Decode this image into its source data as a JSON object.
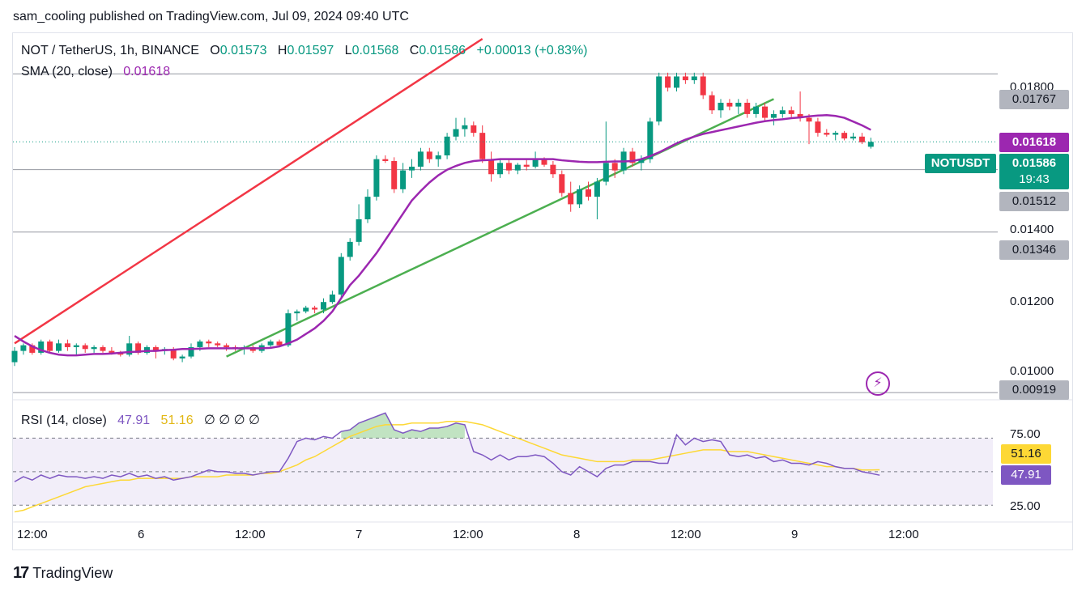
{
  "header": {
    "publish_line": "sam_cooling published on TradingView.com, Jul 09, 2024 09:40 UTC"
  },
  "legend": {
    "symbol": "NOT / TetherUS, 1h, BINANCE",
    "o_label": "O",
    "o_value": "0.01573",
    "h_label": "H",
    "h_value": "0.01597",
    "l_label": "L",
    "l_value": "0.01568",
    "c_label": "C",
    "c_value": "0.01586",
    "change": "+0.00013 (+0.83%)",
    "sma_label": "SMA (20, close)",
    "sma_value": "0.01618",
    "rsi_label": "RSI (14, close)",
    "rsi_value": "47.91",
    "rsi_ma_value": "51.16",
    "rsi_extra": "∅  ∅  ∅  ∅"
  },
  "price_scale": {
    "ticks": [
      "0.01800",
      "0.01400",
      "0.01200",
      "0.01000"
    ],
    "level_17767": "0.01767",
    "level_15512": "0.01512",
    "level_13346": "0.01346",
    "level_09919": "0.00919",
    "sma_box": "0.01618",
    "last_price_box": "0.01586",
    "countdown": "19:43",
    "symbol_tag": "NOTUSDT"
  },
  "rsi_scale": {
    "ticks": [
      "75.00",
      "25.00"
    ],
    "ma_box": "51.16",
    "rsi_box": "47.91"
  },
  "time_axis": [
    "12:00",
    "6",
    "12:00",
    "7",
    "12:00",
    "8",
    "12:00",
    "9",
    "12:00"
  ],
  "footer": {
    "brand": "TradingView"
  },
  "colors": {
    "up": "#089981",
    "down": "#f23645",
    "sma": "#9c27b0",
    "rsi": "#7e57c2",
    "rsi_ma": "#fdd835",
    "resistance_line": "#f23645",
    "support_line": "#4caf50"
  },
  "chart_data": {
    "type": "candlestick",
    "title": "NOT / TetherUS, 1h, BINANCE",
    "interval": "1h",
    "ylim": [
      0.009,
      0.0186
    ],
    "horizontal_levels": [
      0.01767,
      0.01512,
      0.01346,
      0.00919
    ],
    "candles_ohlc": [
      [
        0.01,
        0.0104,
        0.0099,
        0.0103
      ],
      [
        0.0103,
        0.0105,
        0.0102,
        0.01045
      ],
      [
        0.01045,
        0.0105,
        0.0102,
        0.01025
      ],
      [
        0.01025,
        0.0106,
        0.0102,
        0.01055
      ],
      [
        0.01055,
        0.0106,
        0.01025,
        0.0103
      ],
      [
        0.0103,
        0.0106,
        0.01025,
        0.0105
      ],
      [
        0.0105,
        0.0106,
        0.0103,
        0.0104
      ],
      [
        0.0104,
        0.0105,
        0.0102,
        0.01045
      ],
      [
        0.01045,
        0.0105,
        0.01025,
        0.01035
      ],
      [
        0.01035,
        0.01045,
        0.01025,
        0.0104
      ],
      [
        0.0104,
        0.01045,
        0.01025,
        0.0103
      ],
      [
        0.0103,
        0.0104,
        0.0102,
        0.01025
      ],
      [
        0.01025,
        0.0103,
        0.01015,
        0.0102
      ],
      [
        0.0102,
        0.0107,
        0.01015,
        0.0105
      ],
      [
        0.0105,
        0.01055,
        0.0102,
        0.01025
      ],
      [
        0.01025,
        0.01045,
        0.0102,
        0.0104
      ],
      [
        0.0104,
        0.01045,
        0.0101,
        0.0103
      ],
      [
        0.0103,
        0.0104,
        0.0102,
        0.01035
      ],
      [
        0.01035,
        0.0104,
        0.01005,
        0.0101
      ],
      [
        0.0101,
        0.0102,
        0.01,
        0.01015
      ],
      [
        0.01015,
        0.0105,
        0.0101,
        0.0104
      ],
      [
        0.0104,
        0.0106,
        0.0103,
        0.01055
      ],
      [
        0.01055,
        0.0106,
        0.0104,
        0.0105
      ],
      [
        0.0105,
        0.01055,
        0.0104,
        0.01045
      ],
      [
        0.01045,
        0.0105,
        0.0103,
        0.0104
      ],
      [
        0.0104,
        0.01045,
        0.0103,
        0.01035
      ],
      [
        0.01035,
        0.01045,
        0.0102,
        0.0104
      ],
      [
        0.0104,
        0.01045,
        0.01025,
        0.0103
      ],
      [
        0.0103,
        0.0105,
        0.01025,
        0.01045
      ],
      [
        0.01045,
        0.0106,
        0.0104,
        0.01055
      ],
      [
        0.01055,
        0.0106,
        0.0104,
        0.01045
      ],
      [
        0.01045,
        0.0114,
        0.0104,
        0.0113
      ],
      [
        0.0113,
        0.0114,
        0.0111,
        0.01135
      ],
      [
        0.01135,
        0.0115,
        0.0113,
        0.01145
      ],
      [
        0.01145,
        0.0115,
        0.0113,
        0.0114
      ],
      [
        0.0114,
        0.0117,
        0.0113,
        0.0116
      ],
      [
        0.0116,
        0.0119,
        0.01155,
        0.0118
      ],
      [
        0.0118,
        0.0129,
        0.0117,
        0.0128
      ],
      [
        0.0128,
        0.0133,
        0.0127,
        0.0132
      ],
      [
        0.0132,
        0.0142,
        0.0131,
        0.0138
      ],
      [
        0.0138,
        0.0146,
        0.0137,
        0.0144
      ],
      [
        0.0144,
        0.0155,
        0.0143,
        0.0154
      ],
      [
        0.0154,
        0.0155,
        0.0153,
        0.01535
      ],
      [
        0.01535,
        0.01545,
        0.0145,
        0.0146
      ],
      [
        0.0146,
        0.0153,
        0.0145,
        0.0151
      ],
      [
        0.0151,
        0.0154,
        0.0149,
        0.0152
      ],
      [
        0.0152,
        0.0157,
        0.0151,
        0.0156
      ],
      [
        0.0156,
        0.0157,
        0.0153,
        0.0154
      ],
      [
        0.0154,
        0.0156,
        0.0152,
        0.0155
      ],
      [
        0.0155,
        0.0161,
        0.0154,
        0.016
      ],
      [
        0.016,
        0.0165,
        0.0159,
        0.0162
      ],
      [
        0.0162,
        0.0165,
        0.016,
        0.0163
      ],
      [
        0.0163,
        0.0164,
        0.016,
        0.0161
      ],
      [
        0.0161,
        0.0163,
        0.0153,
        0.0154
      ],
      [
        0.0154,
        0.0156,
        0.0148,
        0.015
      ],
      [
        0.015,
        0.0154,
        0.0149,
        0.0153
      ],
      [
        0.0153,
        0.0154,
        0.015,
        0.0151
      ],
      [
        0.0151,
        0.0153,
        0.015,
        0.01525
      ],
      [
        0.01525,
        0.0154,
        0.0151,
        0.0152
      ],
      [
        0.0152,
        0.0156,
        0.01515,
        0.0154
      ],
      [
        0.0154,
        0.01545,
        0.0152,
        0.01525
      ],
      [
        0.01525,
        0.01535,
        0.0149,
        0.015
      ],
      [
        0.015,
        0.0151,
        0.0144,
        0.0145
      ],
      [
        0.0145,
        0.0148,
        0.014,
        0.0142
      ],
      [
        0.0142,
        0.0147,
        0.0141,
        0.0146
      ],
      [
        0.0146,
        0.0148,
        0.0143,
        0.0144
      ],
      [
        0.0144,
        0.0149,
        0.0138,
        0.0148
      ],
      [
        0.0148,
        0.0164,
        0.0147,
        0.0153
      ],
      [
        0.0153,
        0.0154,
        0.0149,
        0.0151
      ],
      [
        0.0151,
        0.0157,
        0.015,
        0.0156
      ],
      [
        0.0156,
        0.0157,
        0.0152,
        0.0153
      ],
      [
        0.0153,
        0.0155,
        0.0151,
        0.0154
      ],
      [
        0.0154,
        0.0165,
        0.0153,
        0.0164
      ],
      [
        0.0164,
        0.0177,
        0.0163,
        0.0176
      ],
      [
        0.0176,
        0.0177,
        0.0172,
        0.0173
      ],
      [
        0.0173,
        0.0177,
        0.0172,
        0.0176
      ],
      [
        0.0176,
        0.0177,
        0.0174,
        0.0175
      ],
      [
        0.0175,
        0.0177,
        0.0174,
        0.0176
      ],
      [
        0.0176,
        0.0177,
        0.017,
        0.0171
      ],
      [
        0.0171,
        0.0172,
        0.0166,
        0.0167
      ],
      [
        0.0167,
        0.017,
        0.0165,
        0.0169
      ],
      [
        0.0169,
        0.017,
        0.0167,
        0.0168
      ],
      [
        0.0168,
        0.017,
        0.0166,
        0.0169
      ],
      [
        0.0169,
        0.017,
        0.0165,
        0.0166
      ],
      [
        0.0166,
        0.0169,
        0.0165,
        0.0168
      ],
      [
        0.0168,
        0.0169,
        0.0164,
        0.0165
      ],
      [
        0.0165,
        0.0167,
        0.0163,
        0.0166
      ],
      [
        0.0166,
        0.0168,
        0.0165,
        0.0167
      ],
      [
        0.0167,
        0.0168,
        0.0165,
        0.0166
      ],
      [
        0.0166,
        0.0172,
        0.0164,
        0.0165
      ],
      [
        0.0165,
        0.0166,
        0.0158,
        0.0164
      ],
      [
        0.0164,
        0.0165,
        0.016,
        0.0161
      ],
      [
        0.0161,
        0.0162,
        0.016,
        0.01605
      ],
      [
        0.01605,
        0.01615,
        0.0159,
        0.0161
      ],
      [
        0.0161,
        0.01615,
        0.0159,
        0.01595
      ],
      [
        0.01595,
        0.0161,
        0.0159,
        0.016
      ],
      [
        0.016,
        0.0161,
        0.0158,
        0.01585
      ],
      [
        0.01573,
        0.01597,
        0.01568,
        0.01586
      ]
    ],
    "sma_20": [
      0.0107,
      0.01055,
      0.01042,
      0.01032,
      0.01025,
      0.0102,
      0.01018,
      0.01018,
      0.0102,
      0.01022,
      0.01022,
      0.01023,
      0.01025,
      0.01027,
      0.01028,
      0.0103,
      0.0103,
      0.01032,
      0.01033,
      0.01035,
      0.01035,
      0.01036,
      0.01037,
      0.01037,
      0.01037,
      0.01037,
      0.01037,
      0.01037,
      0.01037,
      0.01038,
      0.01042,
      0.0105,
      0.0106,
      0.01075,
      0.0109,
      0.0111,
      0.01135,
      0.0117,
      0.01205,
      0.0123,
      0.0126,
      0.0129,
      0.01325,
      0.0136,
      0.01395,
      0.0143,
      0.01455,
      0.01478,
      0.01497,
      0.01512,
      0.01522,
      0.0153,
      0.01535,
      0.01537,
      0.01538,
      0.0154,
      0.0154,
      0.0154,
      0.0154,
      0.0154,
      0.0154,
      0.0154,
      0.01537,
      0.01535,
      0.01533,
      0.01532,
      0.01532,
      0.01533,
      0.01534,
      0.01534,
      0.01535,
      0.0154,
      0.01548,
      0.01558,
      0.0157,
      0.01582,
      0.01592,
      0.016,
      0.01607,
      0.01612,
      0.01617,
      0.01622,
      0.01627,
      0.01632,
      0.01637,
      0.01641,
      0.01644,
      0.01646,
      0.01649,
      0.01651,
      0.01654,
      0.01656,
      0.01657,
      0.01655,
      0.0165,
      0.0164,
      0.0163,
      0.01618
    ],
    "trendlines": [
      {
        "name": "resistance",
        "from": [
          0,
          0.0105
        ],
        "to": [
          53,
          0.0186
        ]
      },
      {
        "name": "support",
        "from": [
          24,
          0.01015
        ],
        "to": [
          86,
          0.017
        ]
      }
    ],
    "rsi": {
      "ylim": [
        20,
        90
      ],
      "bands": [
        30,
        50,
        70
      ],
      "rsi_14": [
        44,
        47,
        45,
        48,
        46,
        48,
        47,
        47,
        46,
        47,
        46,
        48,
        47,
        49,
        47,
        48,
        46,
        47,
        45,
        46,
        47,
        49,
        51,
        50,
        50,
        49,
        49,
        48,
        49,
        50,
        50,
        58,
        68,
        70,
        69,
        71,
        70,
        74,
        75,
        79,
        81,
        83,
        85,
        75,
        73,
        75,
        74,
        76,
        76,
        77,
        79,
        78,
        62,
        60,
        57,
        60,
        57,
        59,
        59,
        60,
        59,
        55,
        50,
        48,
        53,
        50,
        47,
        52,
        54,
        54,
        56,
        56,
        56,
        55,
        55,
        72,
        66,
        70,
        68,
        69,
        68,
        60,
        59,
        60,
        58,
        59,
        56,
        57,
        55,
        55,
        54,
        56,
        55,
        53,
        52,
        52,
        50,
        49,
        47.91
      ],
      "rsi_ma": [
        26,
        27,
        29,
        31,
        33,
        35,
        37,
        39,
        41,
        42,
        43,
        44,
        45,
        45,
        46,
        46,
        46,
        46,
        46,
        46,
        47,
        47,
        47,
        47,
        48,
        48,
        48,
        48,
        49,
        49,
        50,
        52,
        54,
        57,
        59,
        62,
        65,
        68,
        71,
        73,
        75,
        77,
        78,
        78,
        78,
        79,
        79,
        79,
        79,
        80,
        80,
        80,
        79,
        78,
        76,
        74,
        72,
        70,
        68,
        66,
        64,
        62,
        60,
        59,
        58,
        57,
        56,
        56,
        56,
        56,
        57,
        57,
        57,
        58,
        59,
        60,
        61,
        62,
        63,
        63,
        63,
        62,
        62,
        62,
        61,
        60,
        59,
        58,
        57,
        56,
        55,
        54,
        53,
        53,
        52,
        52,
        51,
        51,
        51.16
      ]
    }
  }
}
